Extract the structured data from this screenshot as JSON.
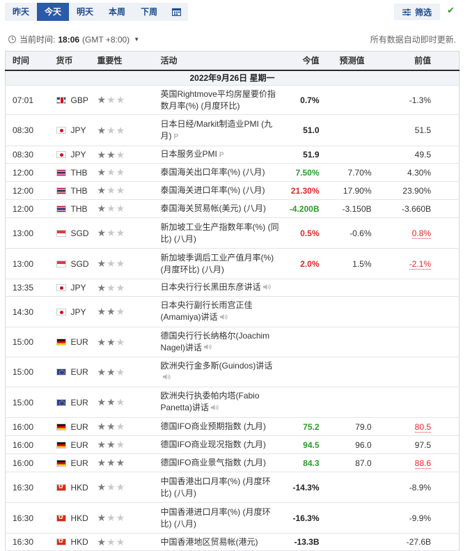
{
  "tabs": [
    "昨天",
    "今天",
    "明天",
    "本周",
    "下周"
  ],
  "active_tab": 1,
  "filter_label": "筛选",
  "timebar": {
    "label": "当前时间:",
    "time": "18:06",
    "zone": "(GMT +8:00)",
    "notice": "所有数据自动即时更新."
  },
  "columns": {
    "time": "时间",
    "currency": "货币",
    "importance": "重要性",
    "event": "活动",
    "actual": "今值",
    "forecast": "预测值",
    "previous": "前值"
  },
  "date_header": "2022年9月26日 星期一",
  "rows": [
    {
      "time": "07:01",
      "flag": "gb",
      "cur": "GBP",
      "stars": 1,
      "event": "英国Rightmove平均房屋要价指数月率(%) (月度环比)",
      "prelim": "",
      "speech": false,
      "actual": "0.7%",
      "actual_class": "neu",
      "forecast": "",
      "previous": "-1.3%",
      "prev_rev": false,
      "h": 42
    },
    {
      "time": "08:30",
      "flag": "jp",
      "cur": "JPY",
      "stars": 1,
      "event": "日本日经/Markit制造业PMI (九月)",
      "prelim": "P",
      "speech": false,
      "actual": "51.0",
      "actual_class": "neu",
      "forecast": "",
      "previous": "51.5",
      "prev_rev": false,
      "h": 45
    },
    {
      "time": "08:30",
      "flag": "jp",
      "cur": "JPY",
      "stars": 2,
      "event": "日本服务业PMI",
      "prelim": "P",
      "speech": false,
      "actual": "51.9",
      "actual_class": "neu",
      "forecast": "",
      "previous": "49.5",
      "prev_rev": false,
      "h": 25
    },
    {
      "time": "12:00",
      "flag": "th",
      "cur": "THB",
      "stars": 1,
      "event": "泰国海关出口年率(%) (八月)",
      "prelim": "",
      "speech": false,
      "actual": "7.50%",
      "actual_class": "pos",
      "forecast": "7.70%",
      "previous": "4.30%",
      "prev_rev": false,
      "h": 26
    },
    {
      "time": "12:00",
      "flag": "th",
      "cur": "THB",
      "stars": 1,
      "event": "泰国海关进口年率(%) (八月)",
      "prelim": "",
      "speech": false,
      "actual": "21.30%",
      "actual_class": "neg",
      "forecast": "17.90%",
      "previous": "23.90%",
      "prev_rev": false,
      "h": 26
    },
    {
      "time": "12:00",
      "flag": "th",
      "cur": "THB",
      "stars": 1,
      "event": "泰国海关贸易帐(美元) (八月)",
      "prelim": "",
      "speech": false,
      "actual": "-4.200B",
      "actual_class": "pos",
      "forecast": "-3.150B",
      "previous": "-3.660B",
      "prev_rev": false,
      "h": 26
    },
    {
      "time": "13:00",
      "flag": "sg",
      "cur": "SGD",
      "stars": 1,
      "event": "新加坡工业生产指数年率(%) (同比) (八月)",
      "prelim": "",
      "speech": false,
      "actual": "0.5%",
      "actual_class": "neg",
      "forecast": "-0.6%",
      "previous": "0.8%",
      "prev_rev": true,
      "h": 44
    },
    {
      "time": "13:00",
      "flag": "sg",
      "cur": "SGD",
      "stars": 1,
      "event": "新加坡季调后工业产值月率(%) (月度环比) (八月)",
      "prelim": "",
      "speech": false,
      "actual": "2.0%",
      "actual_class": "neg",
      "forecast": "1.5%",
      "previous": "-2.1%",
      "prev_rev": true,
      "h": 44
    },
    {
      "time": "13:35",
      "flag": "jp",
      "cur": "JPY",
      "stars": 1,
      "event": "日本央行行长黑田东彦讲话",
      "prelim": "",
      "speech": true,
      "actual": "",
      "actual_class": "neu",
      "forecast": "",
      "previous": "",
      "prev_rev": false,
      "h": 25
    },
    {
      "time": "14:30",
      "flag": "jp",
      "cur": "JPY",
      "stars": 2,
      "event": "日本央行副行长雨宫正佳(Amamiya)讲话",
      "prelim": "",
      "speech": true,
      "actual": "",
      "actual_class": "neu",
      "forecast": "",
      "previous": "",
      "prev_rev": false,
      "h": 44
    },
    {
      "time": "15:00",
      "flag": "de",
      "cur": "EUR",
      "stars": 2,
      "event": "德国央行行长纳格尔(Joachim Nagel)讲话",
      "prelim": "",
      "speech": true,
      "actual": "",
      "actual_class": "neu",
      "forecast": "",
      "previous": "",
      "prev_rev": false,
      "h": 43
    },
    {
      "time": "15:00",
      "flag": "eu",
      "cur": "EUR",
      "stars": 2,
      "event": "欧洲央行金多斯(Guindos)讲话",
      "prelim": "",
      "speech": true,
      "actual": "",
      "actual_class": "neu",
      "forecast": "",
      "previous": "",
      "prev_rev": false,
      "h": 43
    },
    {
      "time": "15:00",
      "flag": "eu",
      "cur": "EUR",
      "stars": 2,
      "event": "欧洲央行执委帕内塔(Fabio Panetta)讲话",
      "prelim": "",
      "speech": true,
      "actual": "",
      "actual_class": "neu",
      "forecast": "",
      "previous": "",
      "prev_rev": false,
      "h": 44
    },
    {
      "time": "16:00",
      "flag": "de",
      "cur": "EUR",
      "stars": 2,
      "event": "德国IFO商业预期指数 (九月)",
      "prelim": "",
      "speech": false,
      "actual": "75.2",
      "actual_class": "pos",
      "forecast": "79.0",
      "previous": "80.5",
      "prev_rev": true,
      "h": 26
    },
    {
      "time": "16:00",
      "flag": "de",
      "cur": "EUR",
      "stars": 2,
      "event": "德国IFO商业现况指数 (九月)",
      "prelim": "",
      "speech": false,
      "actual": "94.5",
      "actual_class": "pos",
      "forecast": "96.0",
      "previous": "97.5",
      "prev_rev": false,
      "h": 26
    },
    {
      "time": "16:00",
      "flag": "de",
      "cur": "EUR",
      "stars": 3,
      "event": "德国IFO商业景气指数 (九月)",
      "prelim": "",
      "speech": false,
      "actual": "84.3",
      "actual_class": "pos",
      "forecast": "87.0",
      "previous": "88.6",
      "prev_rev": true,
      "h": 26
    },
    {
      "time": "16:30",
      "flag": "hk",
      "cur": "HKD",
      "stars": 1,
      "event": "中国香港出口月率(%) (月度环比) (八月)",
      "prelim": "",
      "speech": false,
      "actual": "-14.3%",
      "actual_class": "neu",
      "forecast": "",
      "previous": "-8.9%",
      "prev_rev": false,
      "h": 44
    },
    {
      "time": "16:30",
      "flag": "hk",
      "cur": "HKD",
      "stars": 1,
      "event": "中国香港进口月率(%) (月度环比) (八月)",
      "prelim": "",
      "speech": false,
      "actual": "-16.3%",
      "actual_class": "neu",
      "forecast": "",
      "previous": "-9.9%",
      "prev_rev": false,
      "h": 44
    },
    {
      "time": "16:30",
      "flag": "hk",
      "cur": "HKD",
      "stars": 1,
      "event": "中国香港地区贸易帐(港元)",
      "prelim": "",
      "speech": false,
      "actual": "-13.3B",
      "actual_class": "neu",
      "forecast": "",
      "previous": "-27.6B",
      "prev_rev": false,
      "h": 25
    }
  ]
}
